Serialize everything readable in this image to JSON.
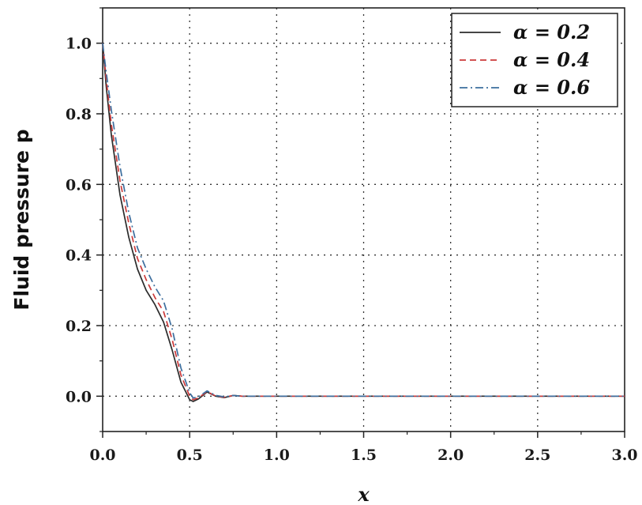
{
  "chart_data": {
    "type": "line",
    "xlabel": "x",
    "ylabel": "Fluid pressure p",
    "xlim": [
      0.0,
      3.0
    ],
    "ylim": [
      -0.1,
      1.1
    ],
    "xticks": [
      "0.0",
      "0.5",
      "1.0",
      "1.5",
      "2.0",
      "2.5",
      "3.0"
    ],
    "yticks": [
      "0.0",
      "0.2",
      "0.4",
      "0.6",
      "0.8",
      "1.0"
    ],
    "grid": true,
    "legend_position": "top-right",
    "series": [
      {
        "name": "α = 0.2",
        "color": "#2b2b2b",
        "style": "solid",
        "x": [
          0.0,
          0.02,
          0.05,
          0.1,
          0.15,
          0.2,
          0.25,
          0.3,
          0.35,
          0.4,
          0.45,
          0.5,
          0.52,
          0.55,
          0.6,
          0.65,
          0.7,
          0.75,
          0.8,
          1.0,
          1.5,
          2.0,
          2.5,
          3.0
        ],
        "y": [
          1.0,
          0.88,
          0.74,
          0.57,
          0.45,
          0.36,
          0.3,
          0.26,
          0.21,
          0.13,
          0.04,
          -0.01,
          -0.015,
          -0.008,
          0.012,
          0.0,
          -0.004,
          0.002,
          0.0,
          0.0,
          0.0,
          0.0,
          0.0,
          0.0
        ]
      },
      {
        "name": "α = 0.4",
        "color": "#cc3a3a",
        "style": "dashed",
        "x": [
          0.0,
          0.02,
          0.05,
          0.1,
          0.15,
          0.2,
          0.25,
          0.3,
          0.35,
          0.4,
          0.45,
          0.5,
          0.52,
          0.55,
          0.6,
          0.65,
          0.7,
          0.75,
          0.8,
          1.0,
          1.5,
          2.0,
          2.5,
          3.0
        ],
        "y": [
          1.0,
          0.9,
          0.77,
          0.61,
          0.49,
          0.39,
          0.33,
          0.28,
          0.24,
          0.16,
          0.06,
          0.0,
          -0.01,
          -0.005,
          0.013,
          0.0,
          -0.003,
          0.002,
          0.0,
          0.0,
          0.0,
          0.0,
          0.0,
          0.0
        ]
      },
      {
        "name": "α = 0.6",
        "color": "#3d6e9e",
        "style": "dashdot",
        "x": [
          0.0,
          0.02,
          0.05,
          0.1,
          0.15,
          0.2,
          0.25,
          0.3,
          0.35,
          0.4,
          0.45,
          0.5,
          0.52,
          0.55,
          0.6,
          0.65,
          0.7,
          0.75,
          0.8,
          1.0,
          1.5,
          2.0,
          2.5,
          3.0
        ],
        "y": [
          1.0,
          0.92,
          0.81,
          0.65,
          0.52,
          0.42,
          0.36,
          0.31,
          0.27,
          0.19,
          0.08,
          0.01,
          -0.005,
          -0.002,
          0.015,
          0.002,
          -0.002,
          0.002,
          0.0,
          0.0,
          0.0,
          0.0,
          0.0,
          0.0
        ]
      }
    ]
  }
}
